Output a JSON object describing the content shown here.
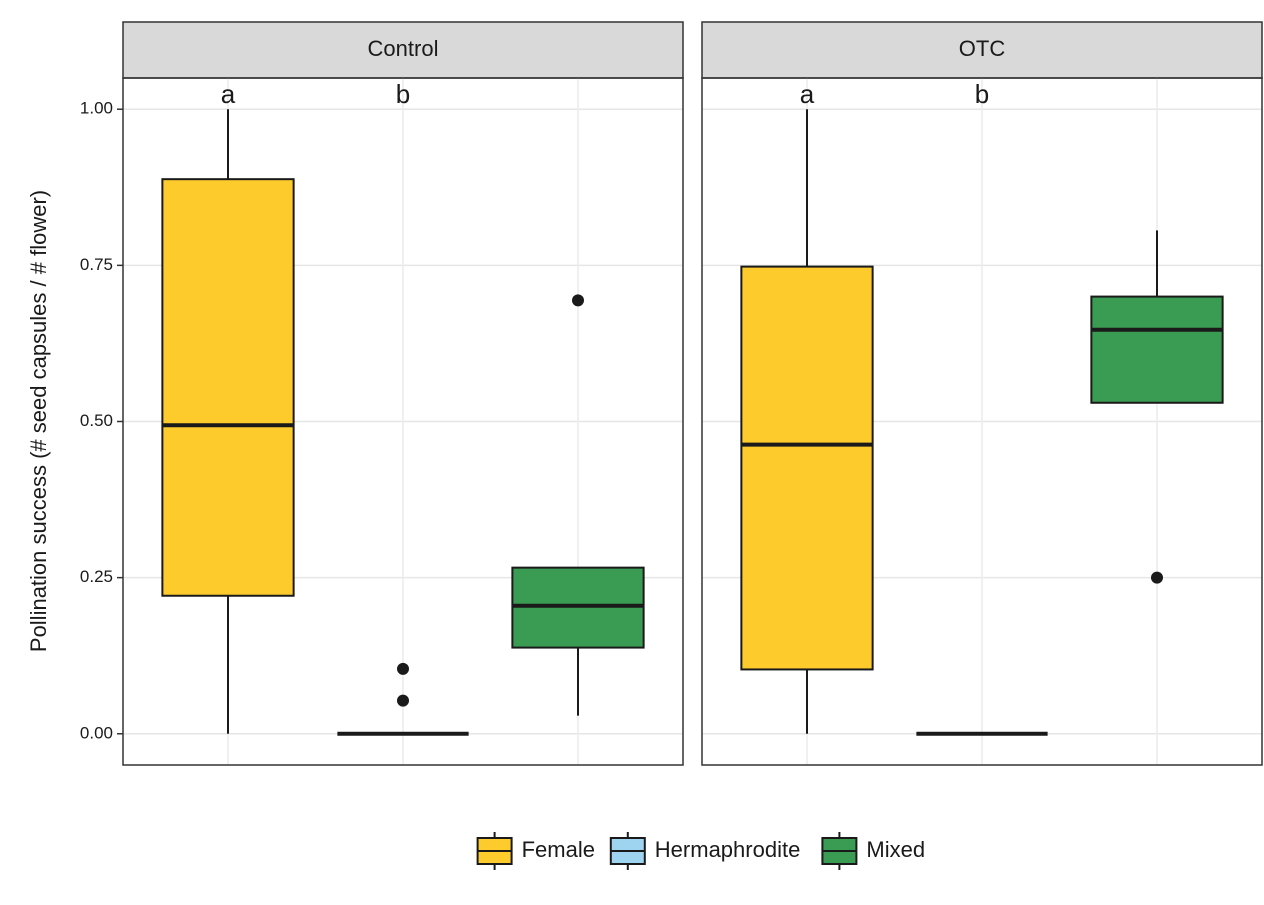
{
  "chart_data": {
    "type": "box",
    "ylabel": "Pollination success (# seed capsules / # flower)",
    "ylim": [
      -0.05,
      1.05
    ],
    "yticks": [
      {
        "value": 0,
        "label": "0.00"
      },
      {
        "value": 0.25,
        "label": "0.25"
      },
      {
        "value": 0.5,
        "label": "0.50"
      },
      {
        "value": 0.75,
        "label": "0.75"
      },
      {
        "value": 1,
        "label": "1.00"
      }
    ],
    "grid": true,
    "legend": "bottom",
    "series": [
      {
        "name": "Female",
        "color": "#fdcc2c"
      },
      {
        "name": "Hermaphrodite",
        "color": "#9fd4f0"
      },
      {
        "name": "Mixed",
        "color": "#3a9b52"
      }
    ],
    "facets": [
      {
        "title": "Control",
        "annotations": [
          "a",
          "b"
        ],
        "boxes": [
          {
            "min": 0,
            "q1": 0.221,
            "median": 0.494,
            "q3": 0.888,
            "max": 1.0
          },
          {
            "min": 0,
            "q1": 0,
            "median": 0,
            "q3": 0,
            "max": 0,
            "outliers": [
              0.104,
              0.053
            ]
          },
          {
            "min": 0.029,
            "q1": 0.138,
            "median": 0.205,
            "q3": 0.266,
            "max": 0.266,
            "outliers": [
              0.694
            ]
          }
        ]
      },
      {
        "title": "OTC",
        "annotations": [
          "a",
          "b"
        ],
        "boxes": [
          {
            "min": 0,
            "q1": 0.103,
            "median": 0.463,
            "q3": 0.748,
            "max": 1.0
          },
          {
            "min": 0,
            "q1": 0,
            "median": 0,
            "q3": 0,
            "max": 0
          },
          {
            "min": 0.53,
            "q1": 0.53,
            "median": 0.647,
            "q3": 0.7,
            "max": 0.806,
            "outliers": [
              0.25
            ]
          }
        ]
      }
    ]
  }
}
